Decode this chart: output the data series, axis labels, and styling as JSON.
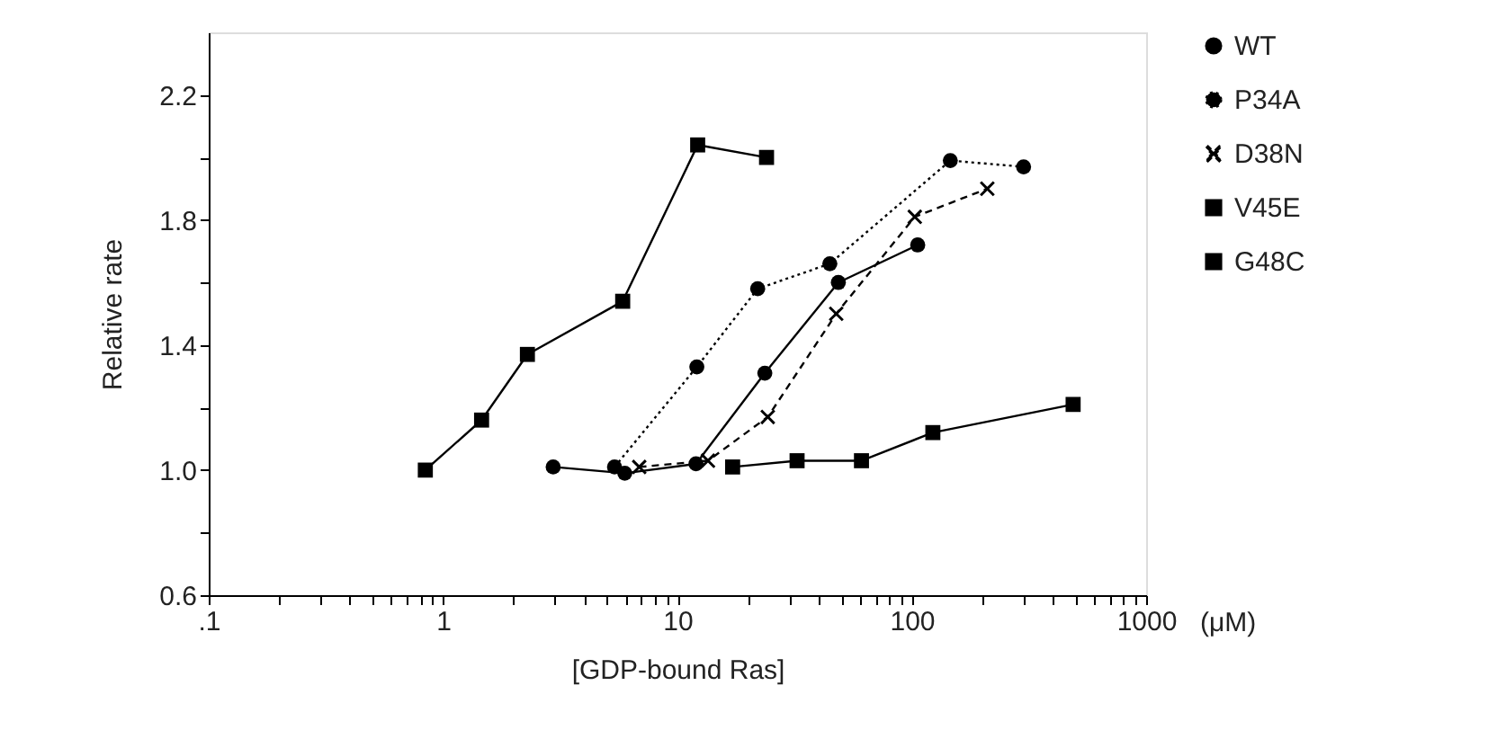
{
  "chart_data": {
    "type": "line",
    "xlabel": "[GDP-bound Ras]",
    "ylabel": "Relative rate",
    "log": "x",
    "grid": false,
    "legend": "right",
    "xlim": [
      0.1,
      1000
    ],
    "xticks": [
      {
        "value": 0.1,
        "label": ".1"
      },
      {
        "value": 0.2,
        "label": null
      },
      {
        "value": 0.3,
        "label": null
      },
      {
        "value": 0.4,
        "label": null
      },
      {
        "value": 0.5,
        "label": null
      },
      {
        "value": 0.6,
        "label": null
      },
      {
        "value": 0.7,
        "label": null
      },
      {
        "value": 0.8,
        "label": null
      },
      {
        "value": 0.9,
        "label": null
      },
      1,
      {
        "value": 2,
        "label": null
      },
      {
        "value": 3,
        "label": null
      },
      {
        "value": 4,
        "label": null
      },
      {
        "value": 5,
        "label": null
      },
      {
        "value": 6,
        "label": null
      },
      {
        "value": 7,
        "label": null
      },
      {
        "value": 8,
        "label": null
      },
      {
        "value": 9,
        "label": null
      },
      10,
      {
        "value": 20,
        "label": null
      },
      {
        "value": 30,
        "label": null
      },
      {
        "value": 40,
        "label": null
      },
      {
        "value": 50,
        "label": null
      },
      {
        "value": 60,
        "label": null
      },
      {
        "value": 70,
        "label": null
      },
      {
        "value": 80,
        "label": null
      },
      {
        "value": 90,
        "label": null
      },
      100,
      {
        "value": 200,
        "label": null
      },
      {
        "value": 300,
        "label": null
      },
      {
        "value": 400,
        "label": null
      },
      {
        "value": 500,
        "label": null
      },
      {
        "value": 600,
        "label": null
      },
      {
        "value": 700,
        "label": null
      },
      {
        "value": 800,
        "label": null
      },
      {
        "value": 900,
        "label": null
      },
      1000
    ],
    "ylim": [
      0.6,
      2.4
    ],
    "yticks": [
      {
        "value": 0.6,
        "label": "0.6"
      },
      {
        "value": 0.8,
        "label": null
      },
      {
        "value": 1.0,
        "label": "1.0"
      },
      {
        "value": 1.2,
        "label": null
      },
      {
        "value": 1.4,
        "label": "1.4"
      },
      {
        "value": 1.6,
        "label": null
      },
      {
        "value": 1.8,
        "label": "1.8"
      },
      {
        "value": 2.0,
        "label": null
      },
      {
        "value": 2.2,
        "label": "2.2"
      }
    ],
    "annotations": [
      "(μM)"
    ],
    "series": [
      {
        "name": "WT",
        "color": "#000000",
        "marker": "circle",
        "line_style": "solid",
        "x": [
          2.95,
          5.96,
          12.0,
          23.6,
          48.6,
          106
        ],
        "values": [
          1.01,
          0.99,
          1.02,
          1.31,
          1.6,
          1.72
        ]
      },
      {
        "name": "P34A",
        "color": "#000000",
        "marker": "circle",
        "line_style": "dotted",
        "x": [
          5.39,
          12.1,
          22.0,
          44.7,
          146,
          300
        ],
        "values": [
          1.01,
          1.33,
          1.58,
          1.66,
          1.99,
          1.97
        ]
      },
      {
        "name": "D38N",
        "color": "#000000",
        "marker": "cross",
        "line_style": "dashed",
        "x": [
          6.87,
          13.5,
          24.3,
          47.6,
          103,
          210
        ],
        "values": [
          1.01,
          1.03,
          1.17,
          1.5,
          1.81,
          1.9
        ]
      },
      {
        "name": "V45E",
        "color": "#000000",
        "marker": "square",
        "line_style": "solid",
        "x": [
          0.84,
          1.46,
          2.29,
          5.84,
          12.2,
          24
        ],
        "values": [
          1.0,
          1.16,
          1.37,
          1.54,
          2.04,
          2.0
        ]
      },
      {
        "name": "G48C",
        "color": "#000000",
        "marker": "square",
        "line_style": "solid",
        "x": [
          17.2,
          32.4,
          61,
          123,
          488
        ],
        "values": [
          1.01,
          1.03,
          1.03,
          1.12,
          1.21
        ]
      }
    ]
  }
}
